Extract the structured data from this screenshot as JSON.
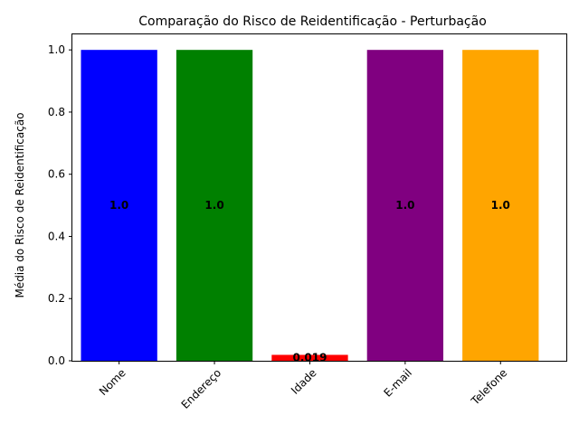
{
  "chart_data": {
    "type": "bar",
    "title": "Comparação do Risco de Reidentificação - Perturbação",
    "xlabel": "",
    "ylabel": "Média do Risco de Reidentificação",
    "categories": [
      "Nome",
      "Endereço",
      "Idade",
      "E-mail",
      "Telefone"
    ],
    "values": [
      1.0,
      1.0,
      0.019,
      1.0,
      1.0
    ],
    "data_labels": [
      "1.0",
      "1.0",
      "0.019",
      "1.0",
      "1.0"
    ],
    "colors": [
      "#0000ff",
      "#008000",
      "#ff0000",
      "#800080",
      "#ffa500"
    ],
    "ylim": [
      0,
      1.05
    ],
    "yticks": [
      0.0,
      0.2,
      0.4,
      0.6,
      0.8,
      1.0
    ],
    "ytick_labels": [
      "0.0",
      "0.2",
      "0.4",
      "0.6",
      "0.8",
      "1.0"
    ],
    "grid": false,
    "legend": "none",
    "xtick_rotation": 45
  }
}
